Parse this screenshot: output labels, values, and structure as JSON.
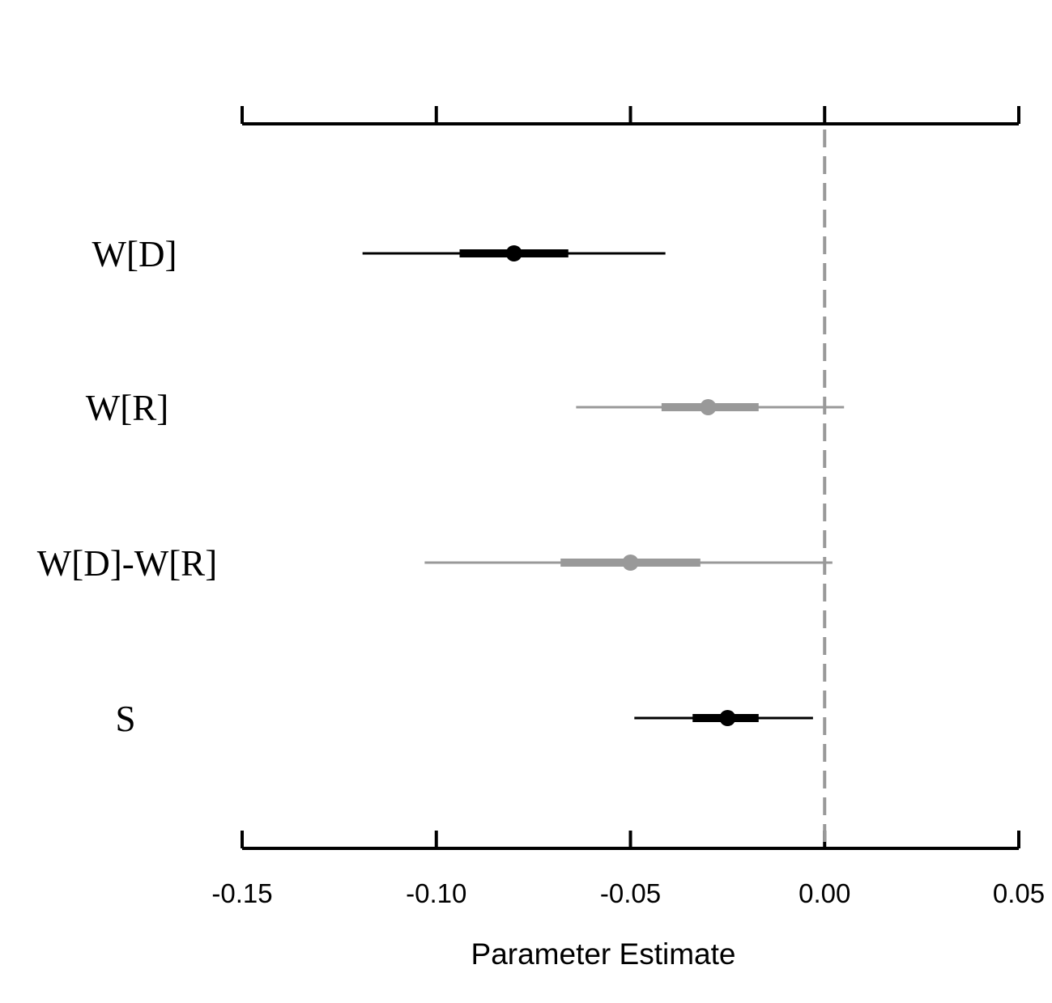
{
  "chart_data": {
    "type": "interval",
    "xlabel": "Parameter Estimate",
    "xlim": [
      -0.15,
      0.05
    ],
    "x_ticks": [
      -0.15,
      -0.1,
      -0.05,
      0.0,
      0.05
    ],
    "x_tick_labels": [
      "-0.15",
      "-0.10",
      "-0.05",
      "0.00",
      "0.05"
    ],
    "reference_line": {
      "x": 0.0,
      "style": "dashed",
      "color": "#999999"
    },
    "grid": false,
    "axes": [
      "top",
      "bottom"
    ],
    "parameters": [
      {
        "label": "W[D]",
        "estimate": -0.08,
        "inner": [
          -0.094,
          -0.066
        ],
        "outer": [
          -0.119,
          -0.041
        ],
        "color": "#000000"
      },
      {
        "label": "W[R]",
        "estimate": -0.03,
        "inner": [
          -0.042,
          -0.017
        ],
        "outer": [
          -0.064,
          0.005
        ],
        "color": "#999999"
      },
      {
        "label": "W[D]-W[R]",
        "estimate": -0.05,
        "inner": [
          -0.068,
          -0.032
        ],
        "outer": [
          -0.103,
          0.002
        ],
        "color": "#999999"
      },
      {
        "label": "S",
        "estimate": -0.025,
        "inner": [
          -0.034,
          -0.017
        ],
        "outer": [
          -0.049,
          -0.003
        ],
        "color": "#000000"
      }
    ]
  }
}
